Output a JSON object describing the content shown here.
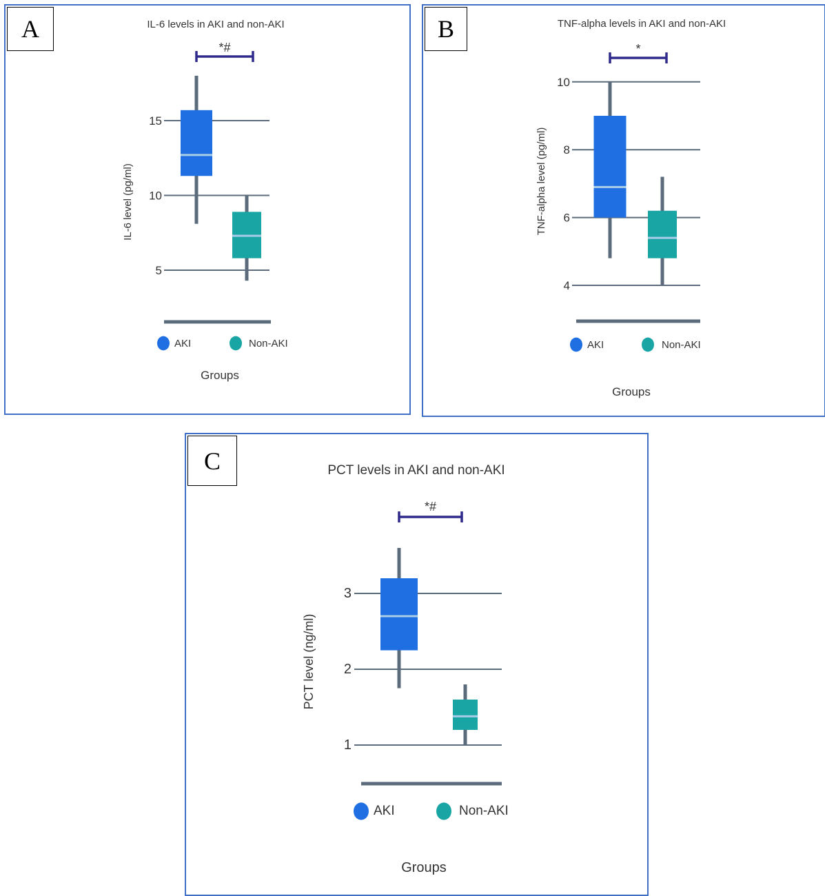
{
  "colors": {
    "aki": "#1f6fe3",
    "non_aki": "#1aa5a5",
    "median": "#a9cde6",
    "whisker": "#5b6b7b",
    "grid": "#5b6b7b",
    "bracket": "#2f2a8c"
  },
  "chart_data": [
    {
      "panel_label": "A",
      "type": "box",
      "title": "IL-6 levels in AKI and non-AKI",
      "xlabel": "Groups",
      "ylabel": "IL-6 level (pg/ml)",
      "yticks": [
        5,
        10,
        15
      ],
      "legend": [
        "AKI",
        "Non-AKI"
      ],
      "significance": "*#",
      "series": [
        {
          "name": "AKI",
          "min": 8.1,
          "q1": 11.3,
          "median": 12.7,
          "q3": 15.7,
          "max": 18
        },
        {
          "name": "Non-AKI",
          "min": 4.3,
          "q1": 5.8,
          "median": 7.3,
          "q3": 8.9,
          "max": 10
        }
      ]
    },
    {
      "panel_label": "B",
      "type": "box",
      "title": "TNF-alpha levels in AKI and non-AKI",
      "xlabel": "Groups",
      "ylabel": "TNF-alpha level (pg/ml)",
      "yticks": [
        4,
        6,
        8,
        10
      ],
      "legend": [
        "AKI",
        "Non-AKI"
      ],
      "significance": "*",
      "series": [
        {
          "name": "AKI",
          "min": 4.8,
          "q1": 6.0,
          "median": 6.9,
          "q3": 9.0,
          "max": 10
        },
        {
          "name": "Non-AKI",
          "min": 4.0,
          "q1": 4.8,
          "median": 5.4,
          "q3": 6.2,
          "max": 7.2
        }
      ]
    },
    {
      "panel_label": "C",
      "type": "box",
      "title": "PCT levels in AKI and non-AKI",
      "xlabel": "Groups",
      "ylabel": "PCT level (ng/ml)",
      "yticks": [
        1,
        2,
        3
      ],
      "legend": [
        "AKI",
        "Non-AKI"
      ],
      "significance": "*#",
      "series": [
        {
          "name": "AKI",
          "min": 1.75,
          "q1": 2.25,
          "median": 2.7,
          "q3": 3.2,
          "max": 3.6
        },
        {
          "name": "Non-AKI",
          "min": 1.0,
          "q1": 1.2,
          "median": 1.38,
          "q3": 1.6,
          "max": 1.8
        }
      ]
    }
  ]
}
